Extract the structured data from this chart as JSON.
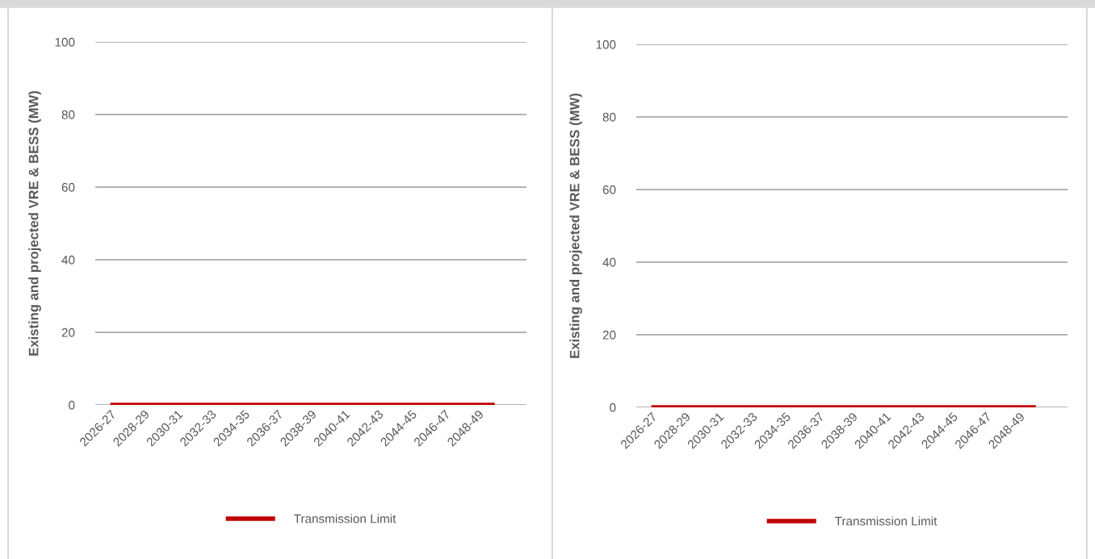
{
  "chart_data": [
    {
      "type": "line",
      "ylabel": "Existing and projected VRE & BESS (MW)",
      "categories": [
        "2026-27",
        null,
        "2028-29",
        null,
        "2030-31",
        null,
        "2032-33",
        null,
        "2034-35",
        null,
        "2036-37",
        null,
        "2038-39",
        null,
        "2040-41",
        null,
        "2042-43",
        null,
        "2044-45",
        null,
        "2046-47",
        null,
        "2048-49",
        null
      ],
      "series": [
        {
          "name": "Transmission Limit",
          "color": "#c00000",
          "values": [
            0,
            0,
            0,
            0,
            0,
            0,
            0,
            0,
            0,
            0,
            0,
            0,
            0,
            0,
            0,
            0,
            0,
            0,
            0,
            0,
            0,
            0,
            0,
            0
          ]
        }
      ],
      "ylim": [
        0,
        100
      ],
      "yticks": [
        0,
        20,
        40,
        60,
        80,
        100
      ],
      "grid": "y",
      "legend": "bottom",
      "marker": "none",
      "line_style": "solid"
    },
    {
      "type": "line",
      "ylabel": "Existing and projected VRE & BESS (MW)",
      "categories": [
        "2026-27",
        null,
        "2028-29",
        null,
        "2030-31",
        null,
        "2032-33",
        null,
        "2034-35",
        null,
        "2036-37",
        null,
        "2038-39",
        null,
        "2040-41",
        null,
        "2042-43",
        null,
        "2044-45",
        null,
        "2046-47",
        null,
        "2048-49",
        null
      ],
      "series": [
        {
          "name": "Transmission Limit",
          "color": "#c00000",
          "values": [
            0,
            0,
            0,
            0,
            0,
            0,
            0,
            0,
            0,
            0,
            0,
            0,
            0,
            0,
            0,
            0,
            0,
            0,
            0,
            0,
            0,
            0,
            0,
            0
          ]
        }
      ],
      "ylim": [
        0,
        100
      ],
      "yticks": [
        0,
        20,
        40,
        60,
        80,
        100
      ],
      "grid": "y",
      "legend": "bottom",
      "marker": "none",
      "line_style": "solid"
    }
  ]
}
